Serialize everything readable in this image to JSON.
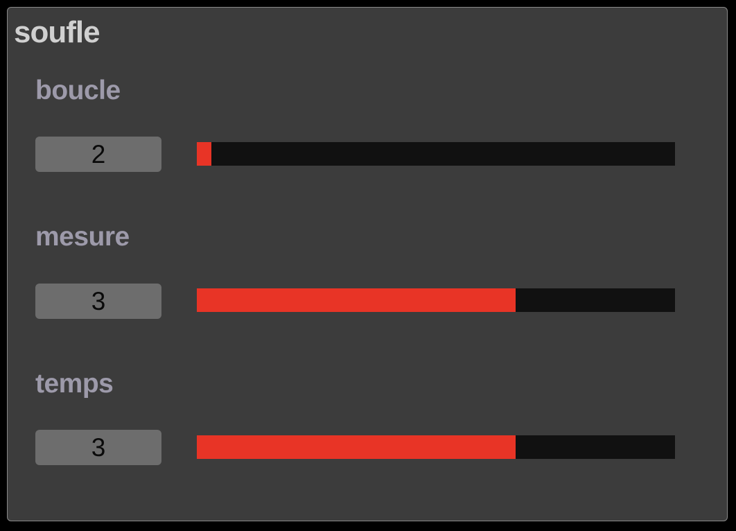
{
  "panel": {
    "title": "soufle"
  },
  "colors": {
    "panel_bg": "#3c3c3c",
    "label": "#9d9aaa",
    "fill": "#e83426",
    "track": "#111111",
    "number_box": "#6d6d6d"
  },
  "params": [
    {
      "label": "boucle",
      "value": "2",
      "fill_fraction": 0.03
    },
    {
      "label": "mesure",
      "value": "3",
      "fill_fraction": 0.666
    },
    {
      "label": "temps",
      "value": "3",
      "fill_fraction": 0.666
    }
  ]
}
